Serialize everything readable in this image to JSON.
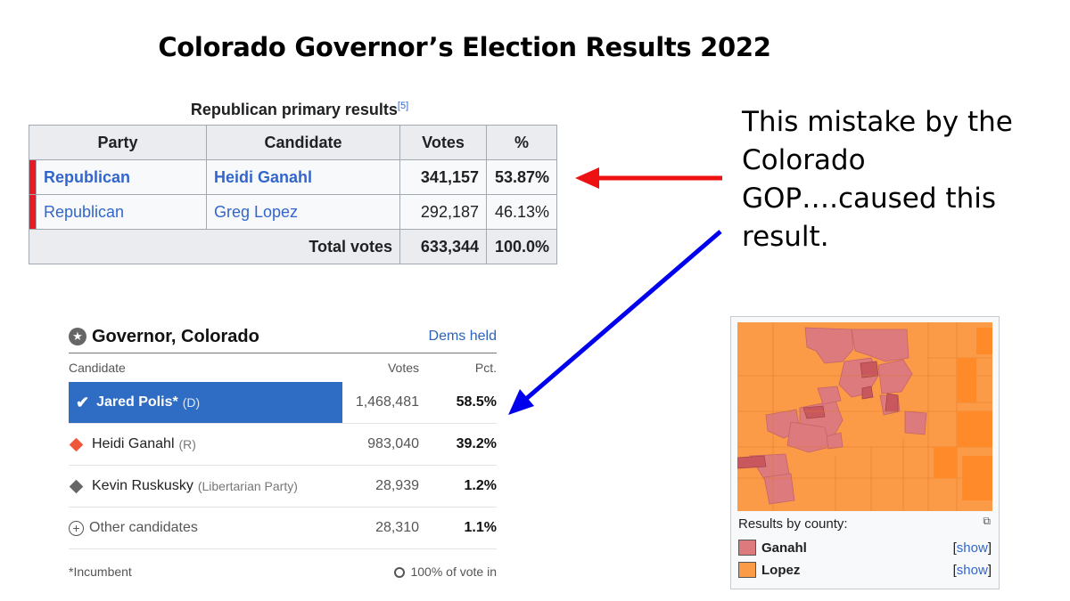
{
  "title": "Colorado Governor’s Election Results 2022",
  "primary": {
    "caption": "Republican primary results",
    "ref": "[5]",
    "headers": [
      "Party",
      "Candidate",
      "Votes",
      "%"
    ],
    "rows": [
      {
        "party": "Republican",
        "candidate": "Heidi Ganahl",
        "votes": "341,157",
        "pct": "53.87%"
      },
      {
        "party": "Republican",
        "candidate": "Greg Lopez",
        "votes": "292,187",
        "pct": "46.13%"
      }
    ],
    "total_label": "Total votes",
    "total_votes": "633,344",
    "total_pct": "100.0%",
    "party_color": "#e81b23"
  },
  "annotation": {
    "lines": [
      "This mistake by the",
      "Colorado",
      "GOP….caused this",
      "result."
    ]
  },
  "arrow_colors": {
    "red": "#ee1111",
    "blue": "#0000ee"
  },
  "general": {
    "title": "Governor, Colorado",
    "status_flag": "Dems held",
    "col_candidate": "Candidate",
    "col_votes": "Votes",
    "col_pct": "Pct.",
    "rows": [
      {
        "name": "Jared Polis*",
        "party": "(D)",
        "votes": "1,468,481",
        "pct": "58.5%",
        "icon": "check-icon"
      },
      {
        "name": "Heidi Ganahl",
        "party": "(R)",
        "votes": "983,040",
        "pct": "39.2%",
        "icon": "diamond-icon",
        "color": "#f0573a"
      },
      {
        "name": "Kevin Ruskusky",
        "party": "(Libertarian Party)",
        "votes": "28,939",
        "pct": "1.2%",
        "icon": "diamond-icon",
        "color": "#666666"
      },
      {
        "name": "Other candidates",
        "party": "",
        "votes": "28,310",
        "pct": "1.1%",
        "icon": "plus-circle-icon"
      }
    ],
    "footnote": "*Incumbent",
    "reporting": "100% of vote in",
    "winner_color": "#2f6cc3"
  },
  "map": {
    "caption": "Results by county:",
    "legend": [
      {
        "label": "Ganahl",
        "color": "#dc7a7d",
        "link": "show"
      },
      {
        "label": "Lopez",
        "color": "#fc9b47",
        "link": "show"
      }
    ]
  }
}
